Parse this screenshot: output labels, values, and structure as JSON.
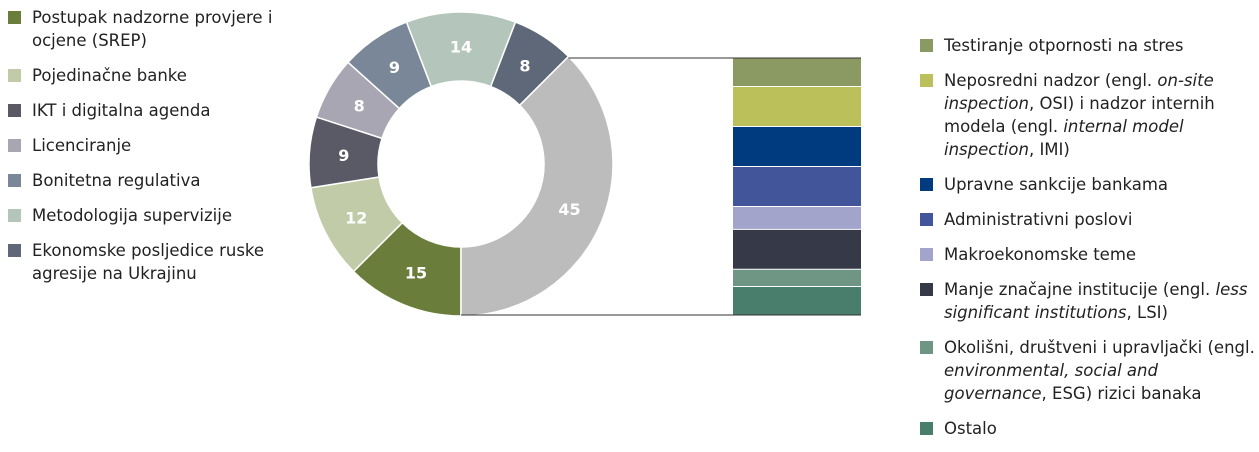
{
  "chart_data": [
    {
      "type": "pie",
      "donut": true,
      "slices": [
        {
          "label": "Postupak nadzorne provjere i ocjene (SREP)",
          "value": 15,
          "color": "#6b7d3a"
        },
        {
          "label": "Pojedinačne banke",
          "value": 12,
          "color": "#c1cba8"
        },
        {
          "label": "IKT i digitalna agenda",
          "value": 9,
          "color": "#5a5a66"
        },
        {
          "label": "Licenciranje",
          "value": 8,
          "color": "#a8a6b2"
        },
        {
          "label": "Bonitetna regulativa",
          "value": 9,
          "color": "#7a8798"
        },
        {
          "label": "Metodologija supervizije",
          "value": 14,
          "color": "#b4c6bb"
        },
        {
          "label": "Ekonomske posljedice ruske agresije na Ukrajinu",
          "value": 8,
          "color": "#5e6879"
        },
        {
          "label": "",
          "value": 45,
          "color": "#bcbcbc"
        }
      ]
    },
    {
      "type": "bar",
      "stacked": true,
      "segments": [
        {
          "label": "Testiranje otpornosti na stres",
          "value": 5,
          "color": "#8b9a62"
        },
        {
          "label": "Neposredni nadzor (OSI) i nadzor internih modela (IMI)",
          "value": 7,
          "color": "#bcc05a"
        },
        {
          "label": "Upravne sankcije bankama",
          "value": 7,
          "color": "#003b80"
        },
        {
          "label": "Administrativni poslovi",
          "value": 7,
          "color": "#42549a"
        },
        {
          "label": "Makroekonomske teme",
          "value": 4,
          "color": "#a2a4cc"
        },
        {
          "label": "Manje značajne institucije (LSI)",
          "value": 7,
          "color": "#363a48"
        },
        {
          "label": "Okolišni, društveni i upravljački (ESG) rizici banaka",
          "value": 3,
          "color": "#6f9585"
        },
        {
          "label": "Ostalo",
          "value": 5,
          "color": "#4a7e6c"
        }
      ]
    }
  ],
  "legend_left": [
    {
      "text": "Postupak nadzorne provjere i ocjene (SREP)",
      "color": "#6b7d3a"
    },
    {
      "text": "Pojedinačne banke",
      "color": "#c1cba8"
    },
    {
      "text": "IKT i digitalna agenda",
      "color": "#5a5a66"
    },
    {
      "text": "Licenciranje",
      "color": "#a8a6b2"
    },
    {
      "text": "Bonitetna regulativa",
      "color": "#7a8798"
    },
    {
      "text": "Metodologija supervizije",
      "color": "#b4c6bb"
    },
    {
      "text": "Ekonomske posljedice ruske agresije na Ukrajinu",
      "color": "#5e6879"
    }
  ],
  "legend_right": [
    {
      "color": "#8b9a62",
      "parts": [
        {
          "t": "Testiranje otpornosti na stres"
        }
      ]
    },
    {
      "color": "#bcc05a",
      "parts": [
        {
          "t": "Neposredni nadzor (engl. "
        },
        {
          "t": "on-site inspection",
          "i": true
        },
        {
          "t": ", OSI) i nadzor internih modela (engl. "
        },
        {
          "t": "internal model inspection",
          "i": true
        },
        {
          "t": ", IMI)"
        }
      ]
    },
    {
      "color": "#003b80",
      "parts": [
        {
          "t": "Upravne sankcije bankama"
        }
      ]
    },
    {
      "color": "#42549a",
      "parts": [
        {
          "t": "Administrativni poslovi"
        }
      ]
    },
    {
      "color": "#a2a4cc",
      "parts": [
        {
          "t": "Makroekonomske teme"
        }
      ]
    },
    {
      "color": "#363a48",
      "parts": [
        {
          "t": "Manje značajne institucije (engl. "
        },
        {
          "t": "less significant institutions",
          "i": true
        },
        {
          "t": ", LSI)"
        }
      ]
    },
    {
      "color": "#6f9585",
      "parts": [
        {
          "t": "Okolišni, društveni i upravljački (engl. "
        },
        {
          "t": "environmental, social and governance",
          "i": true
        },
        {
          "t": ", ESG) rizici banaka"
        }
      ]
    },
    {
      "color": "#4a7e6c",
      "parts": [
        {
          "t": "Ostalo"
        }
      ]
    }
  ]
}
